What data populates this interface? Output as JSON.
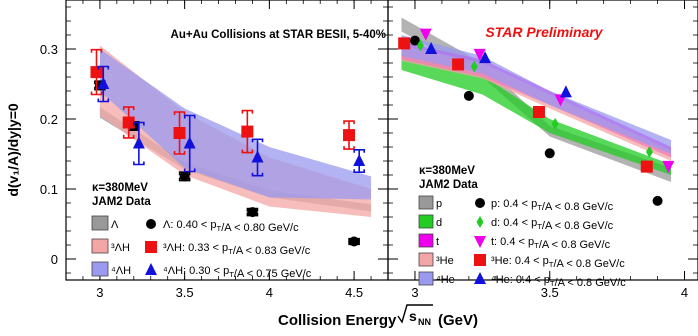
{
  "figure": {
    "ylabel": "d(v₁/A)/dy|y=0",
    "xlabel_prefix": "Collision Energy",
    "xlabel_suffix": "(GeV)",
    "colors": {
      "lambda": "#000000",
      "lambda_band": "#999999",
      "h3l": "#ee1111",
      "h3l_band": "#f4a6a6",
      "h4l": "#1111dd",
      "h4l_band": "#9a9af0",
      "p": "#000000",
      "d": "#22cc22",
      "t": "#ee00ee",
      "he3": "#ee1111",
      "he4": "#1111dd"
    }
  },
  "chart_data": [
    {
      "type": "scatter",
      "title": "Au+Au Collisions at STAR BESII, 5-40%",
      "xlim": [
        2.8,
        4.7
      ],
      "ylim": [
        -0.03,
        0.37
      ],
      "xticks": [
        3,
        3.5,
        4,
        4.5
      ],
      "xtick_labels": [
        "3",
        "3.5",
        "4",
        "4.5"
      ],
      "yticks": [
        0,
        0.1,
        0.2,
        0.3
      ],
      "ytick_labels": [
        "0",
        "0.1",
        "0.2",
        "0.3"
      ],
      "legend": {
        "header1": "κ=380MeV",
        "header2": "JAM2  Data",
        "entries": [
          {
            "band_label": "Λ",
            "text": "Λ: 0.40 < pT/A < 0.80 GeV/c"
          },
          {
            "band_label": "³ΛH",
            "text": "³ΛH: 0.33 < pT/A < 0.83 GeV/c"
          },
          {
            "band_label": "⁴ΛH",
            "text": "⁴ΛH: 0.30 < pT/A < 0.75 GeV/c"
          }
        ]
      },
      "series": [
        {
          "key": "lambda",
          "marker": "circle",
          "points": [
            {
              "x": 3.0,
              "y": 0.248,
              "err": 0.006
            },
            {
              "x": 3.2,
              "y": 0.19,
              "err": 0.006
            },
            {
              "x": 3.5,
              "y": 0.118,
              "err": 0.006
            },
            {
              "x": 3.9,
              "y": 0.067,
              "err": 0.005
            },
            {
              "x": 4.5,
              "y": 0.025,
              "err": 0.004
            }
          ]
        },
        {
          "key": "h3l",
          "marker": "square",
          "points": [
            {
              "x": 2.98,
              "y": 0.267,
              "err": 0.032
            },
            {
              "x": 3.17,
              "y": 0.195,
              "err": 0.022
            },
            {
              "x": 3.47,
              "y": 0.18,
              "err": 0.03
            },
            {
              "x": 3.87,
              "y": 0.182,
              "err": 0.03
            },
            {
              "x": 4.47,
              "y": 0.177,
              "err": 0.02
            }
          ]
        },
        {
          "key": "h4l",
          "marker": "triangle",
          "points": [
            {
              "x": 3.02,
              "y": 0.25,
              "err": 0.025
            },
            {
              "x": 3.23,
              "y": 0.165,
              "err": 0.03
            },
            {
              "x": 3.53,
              "y": 0.165,
              "err": 0.04
            },
            {
              "x": 3.93,
              "y": 0.145,
              "err": 0.026
            },
            {
              "x": 4.53,
              "y": 0.14,
              "err": 0.016
            }
          ]
        }
      ],
      "bands": [
        {
          "key": "lambda_band",
          "x": [
            3.0,
            3.5,
            4.0,
            4.6
          ],
          "lower": [
            0.202,
            0.128,
            0.088,
            0.068
          ],
          "upper": [
            0.217,
            0.138,
            0.098,
            0.078
          ]
        },
        {
          "key": "h3l_band",
          "x": [
            3.0,
            3.5,
            4.0,
            4.6
          ],
          "lower": [
            0.205,
            0.12,
            0.075,
            0.06
          ],
          "upper": [
            0.305,
            0.21,
            0.145,
            0.1
          ]
        },
        {
          "key": "h4l_band",
          "x": [
            3.0,
            3.5,
            4.0,
            4.6
          ],
          "lower": [
            0.24,
            0.13,
            0.088,
            0.085
          ],
          "upper": [
            0.3,
            0.215,
            0.16,
            0.118
          ]
        }
      ]
    },
    {
      "type": "scatter",
      "title": "STAR Preliminary",
      "xlim": [
        2.9,
        4.05
      ],
      "ylim": [
        -0.03,
        0.37
      ],
      "xticks": [
        3,
        3.5,
        4
      ],
      "xtick_labels": [
        "3",
        "3.5",
        "4"
      ],
      "legend": {
        "header1": "κ=380MeV",
        "header2": "JAM2  Data",
        "entries": [
          {
            "band_label": "p",
            "text": "p: 0.4 < pT/A < 0.8 GeV/c"
          },
          {
            "band_label": "d",
            "text": "d: 0.4 < pT/A < 0.8 GeV/c"
          },
          {
            "band_label": "t",
            "text": "t: 0.4 < pT/A < 0.8 GeV/c"
          },
          {
            "band_label": "³He",
            "text": "³He: 0.4 < pT/A < 0.8 GeV/c"
          },
          {
            "band_label": "⁴He",
            "text": "⁴He: 0.4 < pT/A < 0.8 GeV/c"
          }
        ]
      },
      "series": [
        {
          "key": "p",
          "marker": "circle",
          "points": [
            {
              "x": 3.0,
              "y": 0.312
            },
            {
              "x": 3.2,
              "y": 0.233
            },
            {
              "x": 3.5,
              "y": 0.151
            },
            {
              "x": 3.9,
              "y": 0.083
            }
          ]
        },
        {
          "key": "d",
          "marker": "diamond",
          "points": [
            {
              "x": 3.02,
              "y": 0.305
            },
            {
              "x": 3.22,
              "y": 0.275
            },
            {
              "x": 3.52,
              "y": 0.193
            },
            {
              "x": 3.87,
              "y": 0.153
            }
          ]
        },
        {
          "key": "t",
          "marker": "triangle-down",
          "points": [
            {
              "x": 3.04,
              "y": 0.322
            },
            {
              "x": 3.24,
              "y": 0.293
            },
            {
              "x": 3.54,
              "y": 0.228
            },
            {
              "x": 3.94,
              "y": 0.133
            }
          ]
        },
        {
          "key": "he3",
          "marker": "square",
          "points": [
            {
              "x": 2.96,
              "y": 0.308
            },
            {
              "x": 3.16,
              "y": 0.278
            },
            {
              "x": 3.46,
              "y": 0.21
            },
            {
              "x": 3.86,
              "y": 0.132
            }
          ]
        },
        {
          "key": "he4",
          "marker": "triangle",
          "points": [
            {
              "x": 3.06,
              "y": 0.3
            },
            {
              "x": 3.26,
              "y": 0.287
            },
            {
              "x": 3.56,
              "y": 0.238
            }
          ]
        }
      ],
      "bands": [
        {
          "key": "p_band",
          "color_key": "lambda_band",
          "x": [
            2.95,
            3.25,
            3.5,
            3.95
          ],
          "lower": [
            0.325,
            0.26,
            0.175,
            0.11
          ],
          "upper": [
            0.345,
            0.28,
            0.19,
            0.13
          ]
        },
        {
          "key": "d_band",
          "color_key": "d",
          "x": [
            2.95,
            3.25,
            3.5,
            3.95
          ],
          "lower": [
            0.27,
            0.235,
            0.18,
            0.12
          ],
          "upper": [
            0.295,
            0.262,
            0.2,
            0.135
          ]
        },
        {
          "key": "t_band",
          "color_key": "t",
          "x": [
            2.95,
            3.25,
            3.5,
            3.95
          ],
          "lower": [
            0.285,
            0.26,
            0.22,
            0.145
          ],
          "upper": [
            0.31,
            0.285,
            0.24,
            0.16
          ]
        },
        {
          "key": "he3_band",
          "color_key": "h3l_band",
          "x": [
            2.95,
            3.25,
            3.5,
            3.95
          ],
          "lower": [
            0.283,
            0.258,
            0.215,
            0.14
          ],
          "upper": [
            0.305,
            0.28,
            0.235,
            0.155
          ]
        },
        {
          "key": "he4_band",
          "color_key": "h4l_band",
          "x": [
            2.95,
            3.25,
            3.5,
            3.95
          ],
          "lower": [
            0.29,
            0.265,
            0.22,
            0.15
          ],
          "upper": [
            0.32,
            0.29,
            0.24,
            0.17
          ]
        }
      ]
    }
  ]
}
